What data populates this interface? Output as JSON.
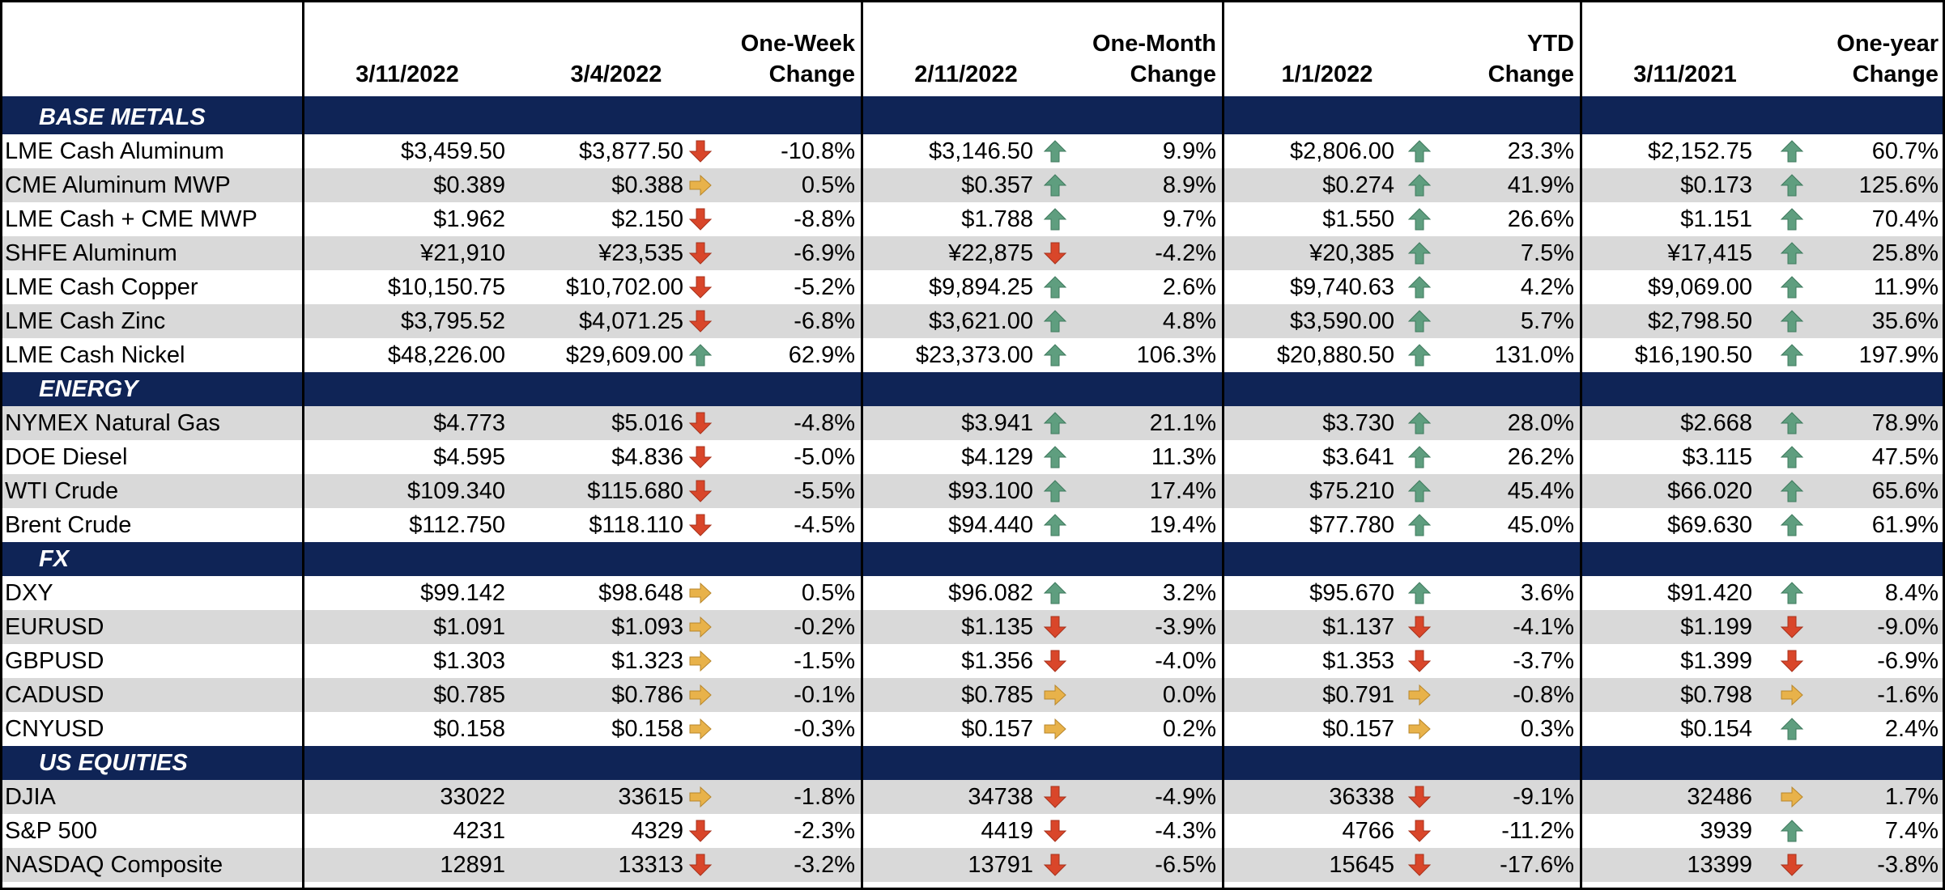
{
  "header": {
    "name": "",
    "d1": "3/11/2022",
    "d2": "3/4/2022",
    "ch1": "One-Week\nChange",
    "d3": "2/11/2022",
    "ch2": "One-Month\nChange",
    "d4": "1/1/2022",
    "ch3": "YTD Change",
    "d5": "3/11/2021",
    "ch4": "One-year\nChange"
  },
  "colors": {
    "navy": "#0f2456",
    "shade": "#d9d9d9",
    "up": "#5f9e7f",
    "down": "#d9462a",
    "flat": "#e8b24a"
  },
  "sections": [
    {
      "title": "BASE METALS",
      "rows": [
        {
          "name": "LME Cash Aluminum",
          "v": [
            "$3,459.50",
            "$3,877.50",
            "-10.8%",
            "$3,146.50",
            "9.9%",
            "$2,806.00",
            "23.3%",
            "$2,152.75",
            "60.7%"
          ],
          "a": [
            "down",
            "up",
            "up",
            "up"
          ]
        },
        {
          "name": "CME Aluminum MWP",
          "v": [
            "$0.389",
            "$0.388",
            "0.5%",
            "$0.357",
            "8.9%",
            "$0.274",
            "41.9%",
            "$0.173",
            "125.6%"
          ],
          "a": [
            "flat",
            "up",
            "up",
            "up"
          ]
        },
        {
          "name": "LME Cash + CME MWP",
          "v": [
            "$1.962",
            "$2.150",
            "-8.8%",
            "$1.788",
            "9.7%",
            "$1.550",
            "26.6%",
            "$1.151",
            "70.4%"
          ],
          "a": [
            "down",
            "up",
            "up",
            "up"
          ]
        },
        {
          "name": "SHFE Aluminum",
          "v": [
            "¥21,910",
            "¥23,535",
            "-6.9%",
            "¥22,875",
            "-4.2%",
            "¥20,385",
            "7.5%",
            "¥17,415",
            "25.8%"
          ],
          "a": [
            "down",
            "down",
            "up",
            "up"
          ]
        },
        {
          "name": "LME Cash Copper",
          "v": [
            "$10,150.75",
            "$10,702.00",
            "-5.2%",
            "$9,894.25",
            "2.6%",
            "$9,740.63",
            "4.2%",
            "$9,069.00",
            "11.9%"
          ],
          "a": [
            "down",
            "up",
            "up",
            "up"
          ]
        },
        {
          "name": "LME Cash Zinc",
          "v": [
            "$3,795.52",
            "$4,071.25",
            "-6.8%",
            "$3,621.00",
            "4.8%",
            "$3,590.00",
            "5.7%",
            "$2,798.50",
            "35.6%"
          ],
          "a": [
            "down",
            "up",
            "up",
            "up"
          ]
        },
        {
          "name": "LME Cash Nickel",
          "v": [
            "$48,226.00",
            "$29,609.00",
            "62.9%",
            "$23,373.00",
            "106.3%",
            "$20,880.50",
            "131.0%",
            "$16,190.50",
            "197.9%"
          ],
          "a": [
            "up",
            "up",
            "up",
            "up"
          ]
        }
      ]
    },
    {
      "title": "ENERGY",
      "rows": [
        {
          "name": "NYMEX Natural Gas",
          "v": [
            "$4.773",
            "$5.016",
            "-4.8%",
            "$3.941",
            "21.1%",
            "$3.730",
            "28.0%",
            "$2.668",
            "78.9%"
          ],
          "a": [
            "down",
            "up",
            "up",
            "up"
          ]
        },
        {
          "name": "DOE Diesel",
          "v": [
            "$4.595",
            "$4.836",
            "-5.0%",
            "$4.129",
            "11.3%",
            "$3.641",
            "26.2%",
            "$3.115",
            "47.5%"
          ],
          "a": [
            "down",
            "up",
            "up",
            "up"
          ]
        },
        {
          "name": "WTI Crude",
          "v": [
            "$109.340",
            "$115.680",
            "-5.5%",
            "$93.100",
            "17.4%",
            "$75.210",
            "45.4%",
            "$66.020",
            "65.6%"
          ],
          "a": [
            "down",
            "up",
            "up",
            "up"
          ]
        },
        {
          "name": "Brent Crude",
          "v": [
            "$112.750",
            "$118.110",
            "-4.5%",
            "$94.440",
            "19.4%",
            "$77.780",
            "45.0%",
            "$69.630",
            "61.9%"
          ],
          "a": [
            "down",
            "up",
            "up",
            "up"
          ]
        }
      ]
    },
    {
      "title": "FX",
      "rows": [
        {
          "name": "DXY",
          "v": [
            "$99.142",
            "$98.648",
            "0.5%",
            "$96.082",
            "3.2%",
            "$95.670",
            "3.6%",
            "$91.420",
            "8.4%"
          ],
          "a": [
            "flat",
            "up",
            "up",
            "up"
          ]
        },
        {
          "name": "EURUSD",
          "v": [
            "$1.091",
            "$1.093",
            "-0.2%",
            "$1.135",
            "-3.9%",
            "$1.137",
            "-4.1%",
            "$1.199",
            "-9.0%"
          ],
          "a": [
            "flat",
            "down",
            "down",
            "down"
          ]
        },
        {
          "name": "GBPUSD",
          "v": [
            "$1.303",
            "$1.323",
            "-1.5%",
            "$1.356",
            "-4.0%",
            "$1.353",
            "-3.7%",
            "$1.399",
            "-6.9%"
          ],
          "a": [
            "flat",
            "down",
            "down",
            "down"
          ]
        },
        {
          "name": "CADUSD",
          "v": [
            "$0.785",
            "$0.786",
            "-0.1%",
            "$0.785",
            "0.0%",
            "$0.791",
            "-0.8%",
            "$0.798",
            "-1.6%"
          ],
          "a": [
            "flat",
            "flat",
            "flat",
            "flat"
          ]
        },
        {
          "name": "CNYUSD",
          "v": [
            "$0.158",
            "$0.158",
            "-0.3%",
            "$0.157",
            "0.2%",
            "$0.157",
            "0.3%",
            "$0.154",
            "2.4%"
          ],
          "a": [
            "flat",
            "flat",
            "flat",
            "up"
          ]
        }
      ]
    },
    {
      "title": "US EQUITIES",
      "rows": [
        {
          "name": "DJIA",
          "v": [
            "33022",
            "33615",
            "-1.8%",
            "34738",
            "-4.9%",
            "36338",
            "-9.1%",
            "32486",
            "1.7%"
          ],
          "a": [
            "flat",
            "down",
            "down",
            "flat"
          ]
        },
        {
          "name": "S&P 500",
          "v": [
            "4231",
            "4329",
            "-2.3%",
            "4419",
            "-4.3%",
            "4766",
            "-11.2%",
            "3939",
            "7.4%"
          ],
          "a": [
            "down",
            "down",
            "down",
            "up"
          ]
        },
        {
          "name": "NASDAQ Composite",
          "v": [
            "12891",
            "13313",
            "-3.2%",
            "13791",
            "-6.5%",
            "15645",
            "-17.6%",
            "13399",
            "-3.8%"
          ],
          "a": [
            "down",
            "down",
            "down",
            "down"
          ]
        }
      ]
    }
  ]
}
